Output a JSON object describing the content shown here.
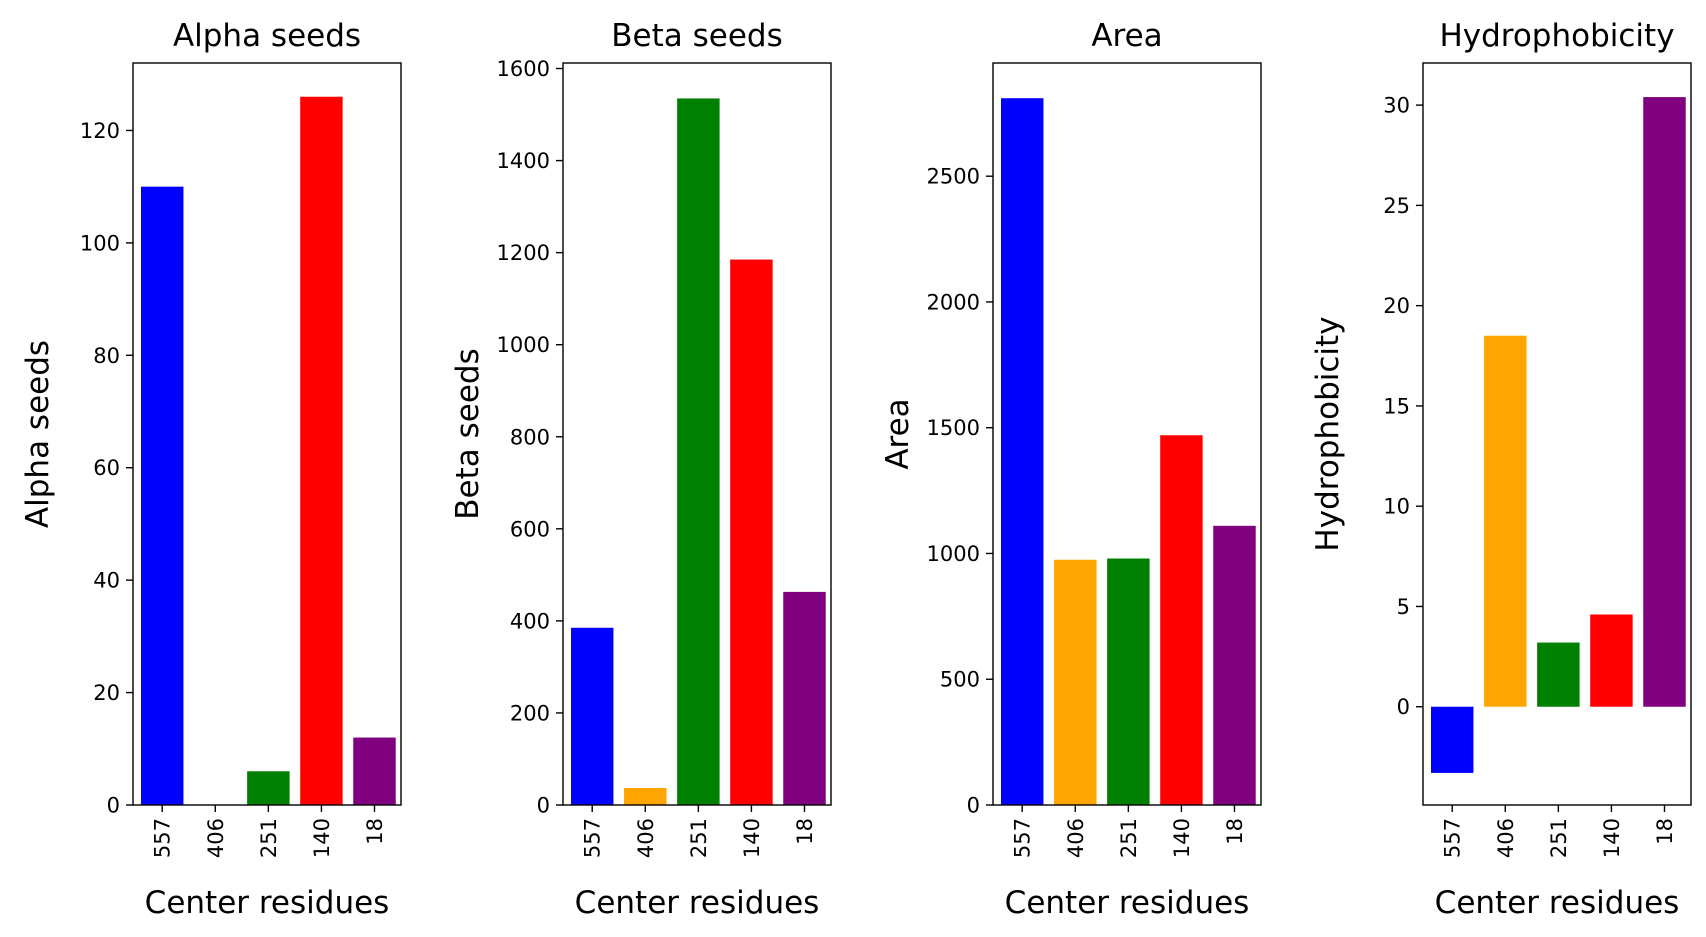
{
  "chart_data": [
    {
      "type": "bar",
      "title": "Alpha seeds",
      "xlabel": "Center residues",
      "ylabel": "Alpha seeds",
      "categories": [
        "557",
        "406",
        "251",
        "140",
        "18"
      ],
      "values": [
        110,
        0,
        6,
        126,
        12
      ],
      "colors": [
        "#0000ff",
        "#ffa500",
        "#008000",
        "#ff0000",
        "#800080"
      ],
      "ylim": [
        0,
        132
      ],
      "yticks": [
        0,
        20,
        40,
        60,
        80,
        100,
        120
      ],
      "ytick_labels": [
        "0",
        "20",
        "40",
        "60",
        "80",
        "100",
        "120"
      ]
    },
    {
      "type": "bar",
      "title": "Beta seeds",
      "xlabel": "Center residues",
      "ylabel": "Beta seeds",
      "categories": [
        "557",
        "406",
        "251",
        "140",
        "18"
      ],
      "values": [
        385,
        37,
        1535,
        1185,
        463
      ],
      "colors": [
        "#0000ff",
        "#ffa500",
        "#008000",
        "#ff0000",
        "#800080"
      ],
      "ylim": [
        0,
        1612
      ],
      "yticks": [
        0,
        200,
        400,
        600,
        800,
        1000,
        1200,
        1400,
        1600
      ],
      "ytick_labels": [
        "0",
        "200",
        "400",
        "600",
        "800",
        "1000",
        "1200",
        "1400",
        "1600"
      ]
    },
    {
      "type": "bar",
      "title": "Area",
      "xlabel": "Center residues",
      "ylabel": "Area",
      "categories": [
        "557",
        "406",
        "251",
        "140",
        "18"
      ],
      "values": [
        2810,
        975,
        980,
        1470,
        1110
      ],
      "colors": [
        "#0000ff",
        "#ffa500",
        "#008000",
        "#ff0000",
        "#800080"
      ],
      "ylim": [
        0,
        2950
      ],
      "yticks": [
        0,
        500,
        1000,
        1500,
        2000,
        2500
      ],
      "ytick_labels": [
        "0",
        "500",
        "1000",
        "1500",
        "2000",
        "2500"
      ]
    },
    {
      "type": "bar",
      "title": "Hydrophobicity",
      "xlabel": "Center residues",
      "ylabel": "Hydrophobicity",
      "categories": [
        "557",
        "406",
        "251",
        "140",
        "18"
      ],
      "values": [
        -3.3,
        18.5,
        3.2,
        4.6,
        30.4
      ],
      "colors": [
        "#0000ff",
        "#ffa500",
        "#008000",
        "#ff0000",
        "#800080"
      ],
      "ylim": [
        -4.9,
        32.1
      ],
      "yticks": [
        0,
        5,
        10,
        15,
        20,
        25,
        30
      ],
      "ytick_labels": [
        "0",
        "5",
        "10",
        "15",
        "20",
        "25",
        "30"
      ]
    }
  ]
}
